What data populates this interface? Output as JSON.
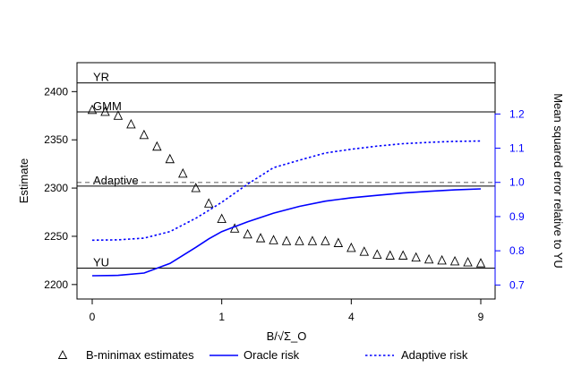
{
  "chart_data": {
    "type": "scatter",
    "x_axis": {
      "label": "B/√Σ_O",
      "ticks": [
        {
          "value": 0,
          "label": "0"
        },
        {
          "value": 1,
          "label": "1"
        },
        {
          "value": 4,
          "label": "4"
        },
        {
          "value": 9,
          "label": "9"
        }
      ],
      "scale": "sqrt",
      "range": [
        0,
        9
      ]
    },
    "y_left": {
      "label": "Estimate",
      "ticks": [
        2200,
        2250,
        2300,
        2350,
        2400
      ],
      "range": [
        2185,
        2430
      ]
    },
    "y_right": {
      "label": "Mean squared error relative to YU",
      "ticks": [
        "0.7",
        "0.8",
        "0.9",
        "1.0",
        "1.1",
        "1.2"
      ],
      "range": [
        0.659,
        1.35
      ],
      "color": "#0000ff"
    },
    "reference_lines": [
      {
        "label": "YR",
        "value": 2409
      },
      {
        "label": "GMM",
        "value": 2379
      },
      {
        "label": "Adaptive",
        "value": 2302
      },
      {
        "label": "YU",
        "value": 2217
      }
    ],
    "dashed_reference": {
      "axis": "right",
      "value": 1.0,
      "color": "#808080"
    },
    "series": [
      {
        "name": "B-minimax estimates",
        "kind": "points",
        "marker": "triangle",
        "color": "#000000",
        "x": [
          0.0,
          0.1,
          0.2,
          0.3,
          0.4,
          0.5,
          0.6,
          0.7,
          0.8,
          0.9,
          1.0,
          1.1,
          1.2,
          1.3,
          1.4,
          1.5,
          1.6,
          1.7,
          1.8,
          1.9,
          2.0,
          2.1,
          2.2,
          2.3,
          2.4,
          2.5,
          2.6,
          2.7,
          2.8,
          2.9,
          3.0
        ],
        "y": [
          2381,
          2379,
          2375,
          2366,
          2355,
          2343,
          2330,
          2315,
          2300,
          2284,
          2268,
          2258,
          2252,
          2248,
          2246,
          2245,
          2245,
          2245,
          2245,
          2243,
          2238,
          2234,
          2231,
          2230,
          2230,
          2228,
          2226,
          2225,
          2224,
          2223,
          2222
        ]
      },
      {
        "name": "Oracle risk",
        "kind": "line",
        "style": "solid",
        "color": "#0000ff",
        "axis": "right",
        "x": [
          0.0,
          0.2,
          0.4,
          0.6,
          0.8,
          0.9,
          1.0,
          1.2,
          1.4,
          1.6,
          1.8,
          2.0,
          2.2,
          2.4,
          2.6,
          2.8,
          3.0
        ],
        "y": [
          0.727,
          0.728,
          0.735,
          0.763,
          0.81,
          0.835,
          0.856,
          0.885,
          0.91,
          0.93,
          0.945,
          0.955,
          0.962,
          0.969,
          0.974,
          0.978,
          0.981
        ]
      },
      {
        "name": "Adaptive risk",
        "kind": "line",
        "style": "dotted",
        "color": "#0000ff",
        "axis": "right",
        "x": [
          0.0,
          0.2,
          0.4,
          0.6,
          0.8,
          0.9,
          1.0,
          1.2,
          1.4,
          1.6,
          1.8,
          2.0,
          2.2,
          2.4,
          2.6,
          2.8,
          3.0
        ],
        "y": [
          0.831,
          0.832,
          0.837,
          0.856,
          0.895,
          0.918,
          0.942,
          0.995,
          1.043,
          1.065,
          1.086,
          1.097,
          1.106,
          1.113,
          1.117,
          1.12,
          1.121
        ]
      }
    ],
    "legend": {
      "placement": "bottom",
      "entries": [
        "B-minimax estimates",
        "Oracle risk",
        "Adaptive risk"
      ]
    }
  }
}
